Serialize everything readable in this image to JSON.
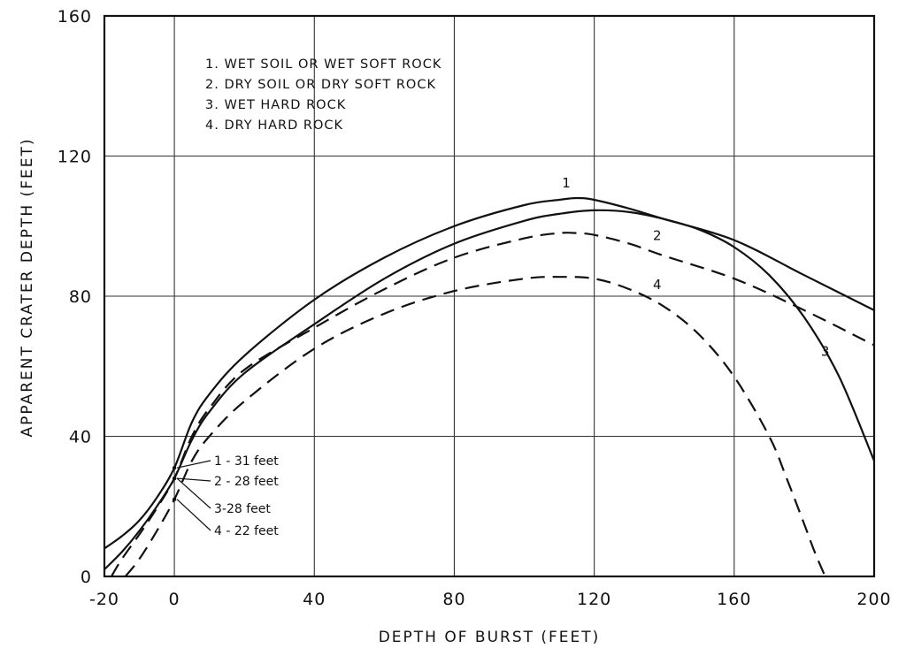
{
  "chart_data": {
    "type": "line",
    "title": "",
    "xlabel": "DEPTH OF BURST (FEET)",
    "ylabel": "APPARENT CRATER DEPTH (FEET)",
    "xlim": [
      -20,
      200
    ],
    "ylim": [
      0,
      160
    ],
    "x_ticks": [
      -20,
      0,
      40,
      80,
      120,
      160,
      200
    ],
    "x_tick_labels": [
      "-20",
      "0",
      "40",
      "80",
      "120",
      "160",
      "200"
    ],
    "y_ticks": [
      0,
      40,
      80,
      120,
      160
    ],
    "y_tick_labels": [
      "0",
      "40",
      "80",
      "120",
      "160"
    ],
    "grid": true,
    "legend_placement": "top-left",
    "legend": [
      "1. WET SOIL OR WET SOFT ROCK",
      "2. DRY SOIL OR DRY SOFT ROCK",
      "3. WET HARD ROCK",
      "4. DRY HARD ROCK"
    ],
    "series": [
      {
        "name": "1",
        "style": "solid",
        "x": [
          -20,
          -15,
          -10,
          -5,
          0,
          5,
          10,
          20,
          40,
          60,
          80,
          100,
          110,
          115,
          120,
          130,
          140,
          160,
          180,
          200
        ],
        "y": [
          8,
          11.5,
          16,
          22.5,
          31,
          44,
          52,
          63,
          79,
          91,
          100,
          106,
          107.5,
          108,
          107.5,
          105,
          102,
          96,
          86,
          76
        ]
      },
      {
        "name": "2",
        "style": "dashed",
        "x": [
          -18,
          -15,
          -10,
          -5,
          0,
          5,
          10,
          20,
          40,
          60,
          80,
          100,
          110,
          115,
          120,
          130,
          140,
          160,
          180,
          200
        ],
        "y": [
          0,
          5,
          12,
          19.5,
          28,
          40,
          48,
          59,
          71,
          82,
          91,
          96.5,
          98,
          98,
          97.5,
          95,
          91.5,
          85,
          76,
          66
        ]
      },
      {
        "name": "3",
        "style": "solid",
        "x": [
          -20,
          -15,
          -10,
          -5,
          0,
          5,
          10,
          20,
          40,
          60,
          80,
          100,
          110,
          120,
          130,
          140,
          150,
          160,
          170,
          180,
          190,
          200
        ],
        "y": [
          2,
          7,
          13,
          20,
          28,
          39,
          47,
          58,
          72,
          85,
          95,
          101.5,
          103.5,
          104.5,
          104,
          102,
          99,
          94,
          86,
          74,
          57,
          33
        ]
      },
      {
        "name": "4",
        "style": "dashed",
        "x": [
          -14,
          -10,
          -5,
          0,
          5,
          10,
          20,
          40,
          60,
          80,
          100,
          110,
          120,
          130,
          140,
          150,
          160,
          170,
          175,
          180,
          183,
          186
        ],
        "y": [
          0,
          5,
          13,
          22,
          33,
          40,
          50,
          65,
          75,
          81.5,
          85,
          85.5,
          85,
          82,
          77,
          69,
          57,
          40,
          28,
          15,
          7,
          0
        ]
      }
    ],
    "annotations": [
      {
        "text": "1 - 31 feet",
        "x": 0,
        "y": 31
      },
      {
        "text": "2 - 28 feet",
        "x": 0,
        "y": 28
      },
      {
        "text": "3-28 feet",
        "x": 0,
        "y": 28
      },
      {
        "text": "4 - 22 feet",
        "x": 0,
        "y": 22
      }
    ],
    "curve_labels": [
      {
        "text": "1",
        "x": 112,
        "y": 111
      },
      {
        "text": "2",
        "x": 138,
        "y": 96
      },
      {
        "text": "3",
        "x": 186,
        "y": 63
      },
      {
        "text": "4",
        "x": 138,
        "y": 82
      }
    ]
  }
}
